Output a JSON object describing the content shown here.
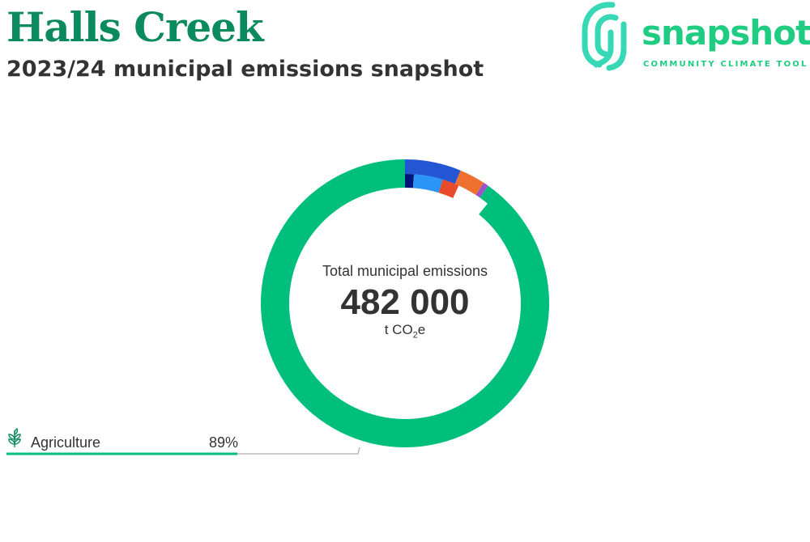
{
  "header": {
    "title": "Halls Creek",
    "subtitle": "2023/24 municipal emissions snapshot"
  },
  "logo": {
    "word": "snapshot",
    "tagline": "COMMUNITY CLIMATE TOOL",
    "icon": "fingerprint-icon"
  },
  "summary": {
    "label": "Total municipal emissions",
    "value": "482 000",
    "unit_prefix": "t CO",
    "unit_sub": "2",
    "unit_suffix": "e"
  },
  "legend": [
    {
      "icon": "sprout-icon",
      "name": "Agriculture",
      "percent_label": "89%"
    }
  ],
  "colors": {
    "brand": "#0b8a5e",
    "logo": "#1fcc82",
    "agriculture": "#00bf7d",
    "track": "#bbbbbb"
  },
  "chart_data": {
    "type": "pie",
    "style": "donut",
    "unit": "t CO2e",
    "total": 482000,
    "segments": [
      {
        "value": 6.3,
        "color": "#2456d3",
        "ring": "outer"
      },
      {
        "value": 2.9,
        "color": "#ef6f2e",
        "ring": "outer"
      },
      {
        "value": 0.6,
        "color": "#9a56c8",
        "ring": "outer"
      },
      {
        "value": 1.2,
        "color": "#00bf7d",
        "ring": "outer"
      },
      {
        "value": 89.0,
        "color": "#00bf7d",
        "ring": "full",
        "legend": "Agriculture"
      },
      {
        "value": 1.1,
        "color": "#00157a",
        "ring": "inner"
      },
      {
        "value": 3.6,
        "color": "#2b95f5",
        "ring": "inner"
      },
      {
        "value": 2.1,
        "color": "#e84a2c",
        "ring": "inner"
      }
    ],
    "highlight_percent": 89
  }
}
